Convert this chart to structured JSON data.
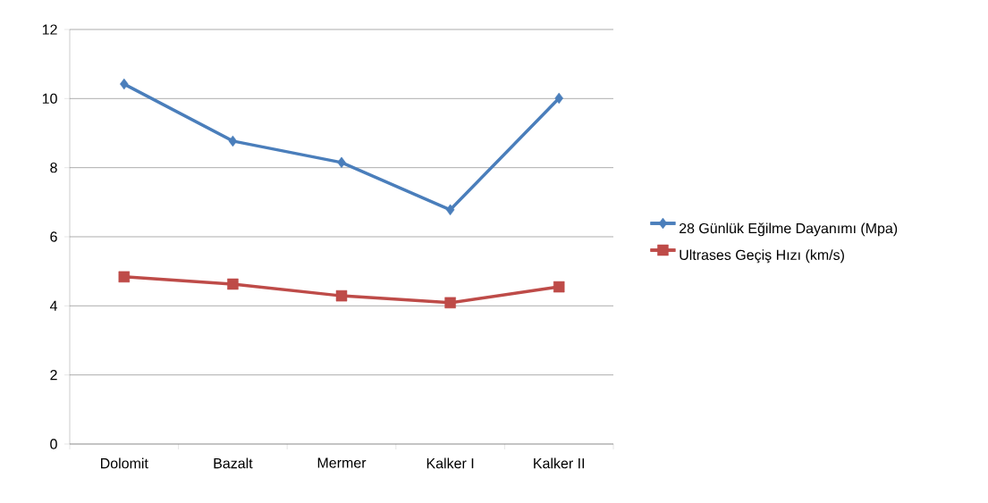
{
  "chart_data": {
    "type": "line",
    "categories": [
      "Dolomit",
      "Bazalt",
      "Mermer",
      "Kalker I",
      "Kalker II"
    ],
    "series": [
      {
        "name": "28 Günlük Eğilme Dayanımı (Mpa)",
        "color": "#4a7ebb",
        "marker": "diamond",
        "values": [
          10.42,
          8.77,
          8.15,
          6.78,
          10.01
        ]
      },
      {
        "name": "Ultrases Geçiş Hızı (km/s)",
        "color": "#be4b48",
        "marker": "square",
        "values": [
          4.84,
          4.63,
          4.29,
          4.09,
          4.55
        ]
      }
    ],
    "ylim": [
      0,
      12
    ],
    "yticks": [
      0,
      2,
      4,
      6,
      8,
      10,
      12
    ],
    "grid": "y",
    "legend": "right"
  }
}
